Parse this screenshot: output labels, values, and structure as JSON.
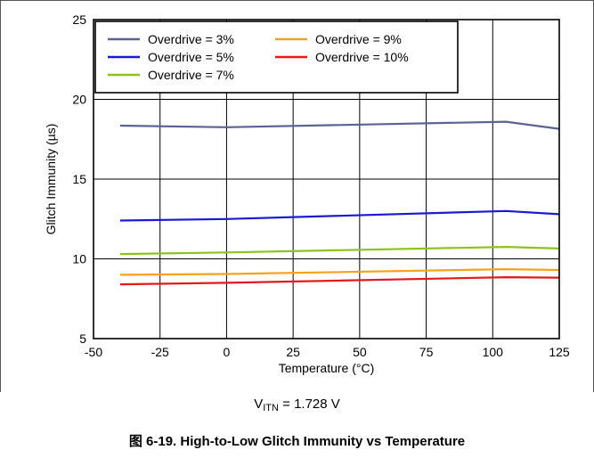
{
  "chart_data": {
    "type": "line",
    "xlabel": "Temperature (°C)",
    "ylabel": "Glitch Immunity (µs)",
    "xlim": [
      -50,
      125
    ],
    "ylim": [
      5,
      25
    ],
    "xticks": [
      -50,
      -25,
      0,
      25,
      50,
      75,
      100,
      125
    ],
    "yticks": [
      5,
      10,
      15,
      20,
      25
    ],
    "grid": true,
    "legend_position": "top-left",
    "series": [
      {
        "name": "Overdrive = 3%",
        "color": "#5b6394",
        "x": [
          -40,
          0,
          105,
          125
        ],
        "y": [
          18.35,
          18.25,
          18.6,
          18.15
        ]
      },
      {
        "name": "Overdrive = 9%",
        "color": "#f5a21e",
        "x": [
          -40,
          0,
          105,
          125
        ],
        "y": [
          9.0,
          9.05,
          9.35,
          9.3
        ]
      },
      {
        "name": "Overdrive = 5%",
        "color": "#1a1ad6",
        "x": [
          -40,
          0,
          105,
          125
        ],
        "y": [
          12.4,
          12.5,
          13.0,
          12.8
        ]
      },
      {
        "name": "Overdrive = 10%",
        "color": "#e11b1b",
        "x": [
          -40,
          0,
          105,
          125
        ],
        "y": [
          8.4,
          8.5,
          8.85,
          8.82
        ]
      },
      {
        "name": "Overdrive = 7%",
        "color": "#8dc21f",
        "x": [
          -40,
          0,
          105,
          125
        ],
        "y": [
          10.3,
          10.4,
          10.75,
          10.65
        ]
      }
    ]
  },
  "condition": {
    "prefix": "V",
    "subscript": "ITN",
    "suffix": " = 1.728 V"
  },
  "caption": "图 6-19. High-to-Low Glitch Immunity vs Temperature"
}
